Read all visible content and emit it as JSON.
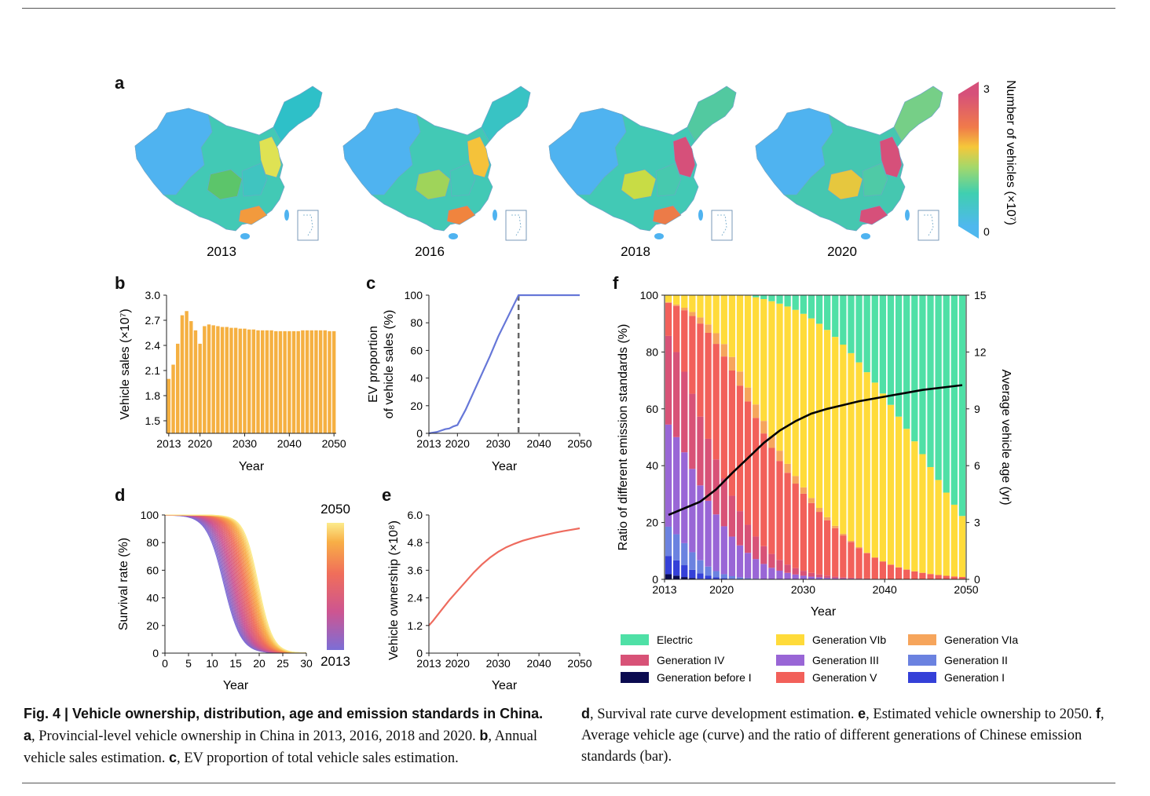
{
  "panel_labels": {
    "a": "a",
    "b": "b",
    "c": "c",
    "d": "d",
    "e": "e",
    "f": "f"
  },
  "maps": {
    "years": [
      "2013",
      "2016",
      "2018",
      "2020"
    ],
    "colorbar": {
      "label": "Number of vehicles (×10⁷)",
      "max": "3",
      "min": "0"
    },
    "colors": {
      "low": "#4fb3f0",
      "mid": "#42c9b5",
      "high": "#d6507a"
    }
  },
  "chart_data": [
    {
      "id": "b",
      "type": "bar",
      "xlabel": "Year",
      "ylabel": "Vehicle sales (×10⁷)",
      "x_ticks": [
        "2013",
        "2020",
        "2030",
        "2040",
        "2050"
      ],
      "y_ticks": [
        "1.5",
        "1.8",
        "2.1",
        "2.4",
        "2.7",
        "3.0"
      ],
      "ylim": [
        1.35,
        3.0
      ],
      "years": [
        2013,
        2014,
        2015,
        2016,
        2017,
        2018,
        2019,
        2020,
        2021,
        2022,
        2023,
        2024,
        2025,
        2026,
        2027,
        2028,
        2029,
        2030,
        2031,
        2032,
        2033,
        2034,
        2035,
        2036,
        2037,
        2038,
        2039,
        2040,
        2041,
        2042,
        2043,
        2044,
        2045,
        2046,
        2047,
        2048,
        2049,
        2050
      ],
      "values": [
        2.0,
        2.17,
        2.42,
        2.76,
        2.81,
        2.69,
        2.58,
        2.42,
        2.63,
        2.65,
        2.64,
        2.63,
        2.62,
        2.62,
        2.61,
        2.61,
        2.6,
        2.6,
        2.59,
        2.59,
        2.58,
        2.58,
        2.58,
        2.58,
        2.57,
        2.57,
        2.57,
        2.57,
        2.57,
        2.57,
        2.58,
        2.58,
        2.58,
        2.58,
        2.58,
        2.58,
        2.57,
        2.57
      ],
      "color": "#f5b041"
    },
    {
      "id": "c",
      "type": "line",
      "xlabel": "Year",
      "ylabel": "EV proportion of vehicle sales (%)",
      "x_ticks": [
        "2013",
        "2020",
        "2030",
        "2040",
        "2050"
      ],
      "y_ticks": [
        "0",
        "20",
        "40",
        "60",
        "80",
        "100"
      ],
      "xlim": [
        2013,
        2050
      ],
      "ylim": [
        0,
        100
      ],
      "x": [
        2013,
        2015,
        2017,
        2018,
        2019,
        2020,
        2022,
        2024,
        2026,
        2028,
        2030,
        2032,
        2034,
        2035,
        2040,
        2045,
        2050
      ],
      "y": [
        0,
        1,
        3,
        3.5,
        5,
        6,
        17,
        30,
        43,
        56,
        70,
        82,
        94,
        100,
        100,
        100,
        100
      ],
      "vline_x": 2035,
      "color": "#6677d8"
    },
    {
      "id": "d",
      "type": "line",
      "xlabel": "Year",
      "ylabel": "Survival rate (%)",
      "x_ticks": [
        "0",
        "5",
        "10",
        "15",
        "20",
        "25",
        "30"
      ],
      "y_ticks": [
        "0",
        "20",
        "40",
        "60",
        "80",
        "100"
      ],
      "xlim": [
        0,
        30
      ],
      "ylim": [
        0,
        100
      ],
      "series_years": [
        2013,
        2050
      ],
      "median_age_range": [
        12.5,
        19.8
      ],
      "colorbar": {
        "max": "2050",
        "min": "2013"
      }
    },
    {
      "id": "e",
      "type": "line",
      "xlabel": "Year",
      "ylabel": "Vehicle ownership (×10⁸)",
      "x_ticks": [
        "2013",
        "2020",
        "2030",
        "2040",
        "2050"
      ],
      "y_ticks": [
        "0",
        "1.2",
        "2.4",
        "3.6",
        "4.8",
        "6.0"
      ],
      "xlim": [
        2013,
        2050
      ],
      "ylim": [
        0,
        6
      ],
      "x": [
        2013,
        2014,
        2016,
        2018,
        2020,
        2022,
        2024,
        2026,
        2028,
        2030,
        2032,
        2034,
        2036,
        2038,
        2040,
        2042,
        2044,
        2046,
        2048,
        2050
      ],
      "y": [
        1.2,
        1.4,
        1.85,
        2.3,
        2.7,
        3.1,
        3.5,
        3.85,
        4.15,
        4.4,
        4.6,
        4.75,
        4.88,
        4.98,
        5.07,
        5.15,
        5.23,
        5.3,
        5.36,
        5.42
      ],
      "color": "#ee6b5e"
    },
    {
      "id": "f",
      "type": "bar",
      "stacked": true,
      "xlabel": "Year",
      "ylabel": "Ratio of different emission standards (%)",
      "y2label": "Average vehicle age (yr)",
      "x_ticks": [
        "2013",
        "2020",
        "2030",
        "2040",
        "2050"
      ],
      "y_ticks": [
        "0",
        "20",
        "40",
        "60",
        "80",
        "100"
      ],
      "y2_ticks": [
        "0",
        "3",
        "6",
        "9",
        "12",
        "15"
      ],
      "ylim": [
        0,
        100
      ],
      "y2lim": [
        0,
        15
      ],
      "legend": [
        {
          "name": "Electric",
          "color": "#4fe0a6"
        },
        {
          "name": "Generation VIb",
          "color": "#ffdb3a"
        },
        {
          "name": "Generation VIa",
          "color": "#f6a55c"
        },
        {
          "name": "Generation IV",
          "color": "#d85277"
        },
        {
          "name": "Generation III",
          "color": "#9966d6"
        },
        {
          "name": "Generation II",
          "color": "#6b82e0"
        },
        {
          "name": "Generation before I",
          "color": "#0b0b50"
        },
        {
          "name": "Generation V",
          "color": "#f2605a"
        },
        {
          "name": "Generation I",
          "color": "#3440d8"
        }
      ],
      "age_curve": {
        "x": [
          2013,
          2015,
          2017,
          2019,
          2021,
          2023,
          2025,
          2027,
          2029,
          2031,
          2033,
          2035,
          2037,
          2039,
          2041,
          2043,
          2045,
          2047,
          2050
        ],
        "y": [
          3.4,
          3.75,
          4.1,
          4.75,
          5.6,
          6.4,
          7.2,
          7.85,
          8.35,
          8.75,
          9.0,
          9.2,
          9.4,
          9.55,
          9.7,
          9.85,
          10.0,
          10.1,
          10.25
        ]
      }
    }
  ],
  "caption": {
    "fig_label": "Fig. 4 | Vehicle ownership, distribution, age and emission standards in China.",
    "part_a_label": "a",
    "part_a": ", Provincial-level vehicle ownership in China in 2013, 2016, 2018 and 2020. ",
    "part_b_label": "b",
    "part_b": ", Annual vehicle sales estimation. ",
    "part_c_label": "c",
    "part_c": ", EV proportion of total vehicle sales estimation.",
    "part_d_label": "d",
    "part_d": ", Survival rate curve development estimation. ",
    "part_e_label": "e",
    "part_e": ", Estimated vehicle ownership to 2050. ",
    "part_f_label": "f",
    "part_f": ", Average vehicle age (curve) and the ratio of different generations of Chinese emission standards (bar)."
  }
}
